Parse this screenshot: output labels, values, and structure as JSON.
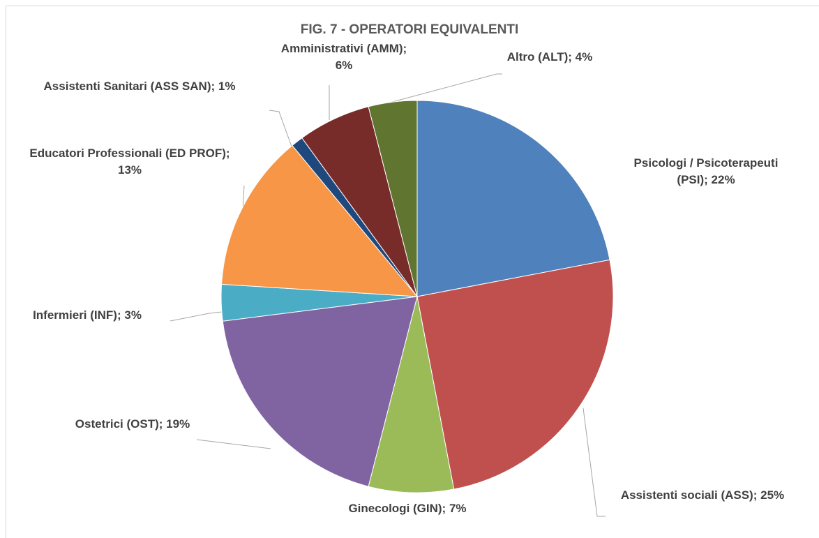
{
  "chart_data": {
    "type": "pie",
    "title": "FIG. 7 - OPERATORI EQUIVALENTI",
    "categories": [
      "Psicologi / Psicoterapeuti (PSI);",
      "Assistenti sociali (ASS);",
      "Ginecologi (GIN);",
      "Ostetrici (OST);",
      "Infermieri (INF);",
      "Educatori Professionali (ED PROF);",
      "Assistenti Sanitari (ASS SAN);",
      "Amministrativi (AMM);",
      "Altro (ALT);"
    ],
    "values": [
      22,
      25,
      7,
      19,
      3,
      13,
      1,
      6,
      4
    ],
    "value_labels": [
      "22%",
      "25%",
      "7%",
      "19%",
      "3%",
      "13%",
      "1%",
      "6%",
      "4%"
    ],
    "colors": [
      "#4f81bd",
      "#c0504d",
      "#9bbb59",
      "#8064a2",
      "#4bacc6",
      "#f79646",
      "#1f497d",
      "#772c2a",
      "#5f7530"
    ]
  }
}
